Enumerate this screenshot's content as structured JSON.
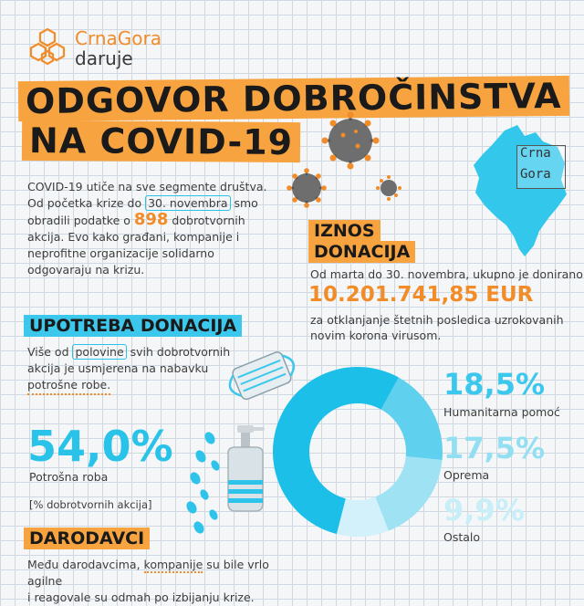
{
  "logo": {
    "line1": "CrnaGora",
    "line2": "daruje"
  },
  "title": {
    "line1": "ODGOVOR DOBROČINSTVA",
    "line2": "NA COVID-19"
  },
  "intro": {
    "t1": "COVID-19 utiče na sve segmente društva.",
    "t2a": "Od početka krize do ",
    "t2b": "30. novembra",
    "t2c": " smo",
    "t3a": "obradili podatke o ",
    "t3b": "898",
    "t3c": " dobrotvornih",
    "t4": "akcija. Evo kako građani, kompanije i",
    "t5": "neprofitne organizacije solidarno",
    "t6": "odgovaraju na krizu."
  },
  "map_labels": {
    "a": "Crna",
    "b": "Gora"
  },
  "iznos": {
    "title1": "IZNOS",
    "title2": "DONACIJA",
    "line1": "Od marta do 30. novembra, ukupno je donirano",
    "amount": "10.201.741,85 EUR",
    "line2": "za otklanjanje štetnih posledica uzrokovanih",
    "line3": "novim korona virusom."
  },
  "upotreba": {
    "title": "UPOTREBA DONACIJA",
    "l1a": "Više od ",
    "l1b": "polovine",
    "l1c": " svih dobrotvornih",
    "l2": "akcija je usmjerena na nabavku",
    "l3": "potrošne robe."
  },
  "main_stat": {
    "value": "54,0%",
    "label": "Potrošna roba",
    "note": "[% dobrotvornih akcija]"
  },
  "donut": {
    "values": [
      54.0,
      18.5,
      17.5,
      9.9
    ],
    "colors": [
      "#1cbfe8",
      "#5fd0ee",
      "#9fe2f4",
      "#d2f1fa"
    ],
    "legend": [
      {
        "value": "18,5%",
        "label": "Humanitarna pomoć",
        "color": "#3cc8ec"
      },
      {
        "value": "17,5%",
        "label": "Oprema",
        "color": "#93dff2"
      },
      {
        "value": "9,9%",
        "label": "Ostalo",
        "color": "#c8eef8"
      }
    ]
  },
  "darodavci": {
    "title": "DARODAVCI",
    "l1a": "Među darodavcima, ",
    "l1b": "kompanije",
    "l1c": " su bile vrlo agilne",
    "l2": "i reagovale su odmah po izbijanju krize."
  }
}
